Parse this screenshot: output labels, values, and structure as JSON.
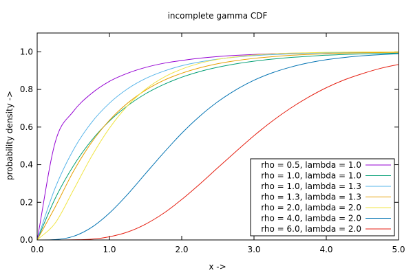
{
  "chart_data": {
    "type": "line",
    "title": "incomplete gamma CDF",
    "xlabel": "x ->",
    "ylabel": "probability density ->",
    "xlim": [
      0,
      5
    ],
    "ylim": [
      0,
      1.1
    ],
    "xticks": [
      0,
      1,
      2,
      3,
      4,
      5
    ],
    "xtick_labels": [
      "0.0",
      "1.0",
      "2.0",
      "3.0",
      "4.0",
      "5.0"
    ],
    "yticks": [
      0,
      0.2,
      0.4,
      0.6,
      0.8,
      1.0
    ],
    "ytick_labels": [
      "0.0",
      "0.2",
      "0.4",
      "0.6",
      "0.8",
      "1.0"
    ],
    "grid": false,
    "legend_position": "bottom-right",
    "function": "regularized lower incomplete gamma P(rho, lambda*x)",
    "x": [
      0.0,
      0.25,
      0.5,
      0.75,
      1.0,
      1.25,
      1.5,
      1.75,
      2.0,
      2.25,
      2.5,
      2.75,
      3.0,
      3.25,
      3.5,
      3.75,
      4.0,
      4.25,
      4.5,
      4.75,
      5.0
    ],
    "series": [
      {
        "name": "rho = 0.5, lambda = 1.0",
        "rho": 0.5,
        "lambda": 1.0,
        "color": "#9400d3",
        "values": [
          0.0,
          0.52,
          0.683,
          0.778,
          0.843,
          0.886,
          0.917,
          0.939,
          0.954,
          0.966,
          0.975,
          0.981,
          0.986,
          0.99,
          0.992,
          0.994,
          0.995,
          0.997,
          0.997,
          0.998,
          0.998
        ]
      },
      {
        "name": "rho = 1.0, lambda = 1.0",
        "rho": 1.0,
        "lambda": 1.0,
        "color": "#009e73",
        "values": [
          0.0,
          0.221,
          0.393,
          0.528,
          0.632,
          0.713,
          0.777,
          0.826,
          0.865,
          0.895,
          0.918,
          0.936,
          0.95,
          0.961,
          0.97,
          0.976,
          0.982,
          0.986,
          0.989,
          0.991,
          0.993
        ]
      },
      {
        "name": "rho = 1.0, lambda = 1.3",
        "rho": 1.0,
        "lambda": 1.3,
        "color": "#56b4e9",
        "values": [
          0.0,
          0.277,
          0.478,
          0.623,
          0.727,
          0.803,
          0.858,
          0.897,
          0.926,
          0.946,
          0.961,
          0.972,
          0.98,
          0.985,
          0.989,
          0.992,
          0.995,
          0.996,
          0.997,
          0.998,
          0.998
        ]
      },
      {
        "name": "rho = 1.3, lambda = 1.3",
        "rho": 1.3,
        "lambda": 1.3,
        "color": "#e69f00",
        "values": [
          0.0,
          0.176,
          0.363,
          0.517,
          0.636,
          0.727,
          0.796,
          0.848,
          0.886,
          0.915,
          0.937,
          0.953,
          0.965,
          0.974,
          0.981,
          0.986,
          0.99,
          0.993,
          0.995,
          0.996,
          0.997
        ]
      },
      {
        "name": "rho = 2.0, lambda = 2.0",
        "rho": 2.0,
        "lambda": 2.0,
        "color": "#f0e442",
        "values": [
          0.0,
          0.09,
          0.264,
          0.442,
          0.594,
          0.713,
          0.801,
          0.864,
          0.908,
          0.939,
          0.96,
          0.973,
          0.983,
          0.989,
          0.993,
          0.995,
          0.997,
          0.998,
          0.999,
          0.999,
          1.0
        ]
      },
      {
        "name": "rho = 4.0, lambda = 2.0",
        "rho": 4.0,
        "lambda": 2.0,
        "color": "#0072b2",
        "values": [
          0.0,
          0.002,
          0.019,
          0.066,
          0.143,
          0.242,
          0.353,
          0.463,
          0.567,
          0.658,
          0.735,
          0.798,
          0.849,
          0.888,
          0.918,
          0.941,
          0.958,
          0.97,
          0.979,
          0.985,
          0.99
        ]
      },
      {
        "name": "rho = 6.0, lambda = 2.0",
        "rho": 6.0,
        "lambda": 2.0,
        "color": "#e51e10",
        "values": [
          0.0,
          0.0,
          0.001,
          0.004,
          0.017,
          0.042,
          0.084,
          0.142,
          0.215,
          0.297,
          0.384,
          0.47,
          0.554,
          0.631,
          0.699,
          0.758,
          0.809,
          0.851,
          0.884,
          0.912,
          0.933
        ]
      }
    ]
  }
}
